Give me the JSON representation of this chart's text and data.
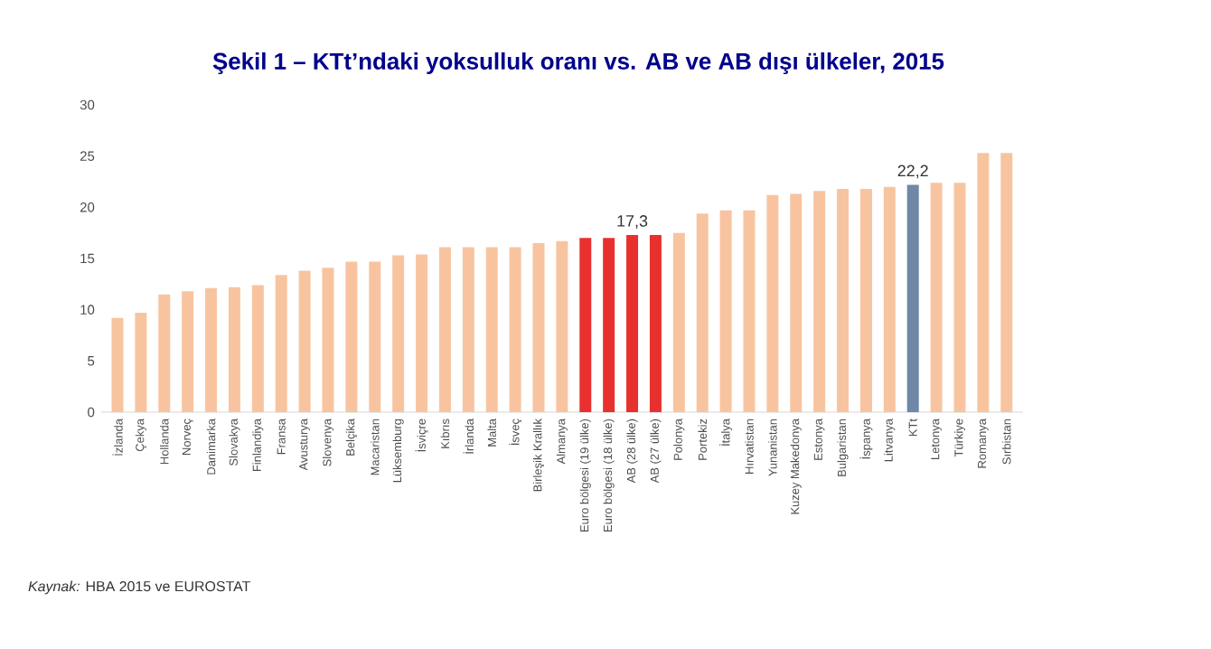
{
  "chart_data": {
    "type": "bar",
    "title": "Şekil 1 – KTt’ndaki yoksulluk oranı vs. AB ve AB dışı ülkeler, 2015",
    "categories": [
      "İzlanda",
      "Çekya",
      "Hollanda",
      "Norveç",
      "Danimarka",
      "Slovakya",
      "Finlandiya",
      "Fransa",
      "Avusturya",
      "Slovenya",
      "Belçika",
      "Macaristan",
      "Lüksemburg",
      "İsviçre",
      "Kıbrıs",
      "İrlanda",
      "Malta",
      "İsveç",
      "Birleşik Krallık",
      "Almanya",
      "Euro bölgesi (19 ülke)",
      "Euro bölgesi (18 ülke)",
      "AB (28 ülke)",
      "AB (27 ülke)",
      "Polonya",
      "Portekiz",
      "İtalya",
      "Hırvatistan",
      "Yunanistan",
      "Kuzey Makedonya",
      "Estonya",
      "Bulgaristan",
      "İspanya",
      "Litvanya",
      "KTt",
      "Letonya",
      "Türkiye",
      "Romanya",
      "Sırbistan"
    ],
    "values": [
      9.2,
      9.7,
      11.5,
      11.8,
      12.1,
      12.2,
      12.4,
      13.4,
      13.8,
      14.1,
      14.7,
      14.7,
      15.3,
      15.4,
      16.1,
      16.1,
      16.1,
      16.1,
      16.5,
      16.7,
      17.0,
      17.0,
      17.3,
      17.3,
      17.5,
      19.4,
      19.7,
      19.7,
      21.2,
      21.3,
      21.6,
      21.8,
      21.8,
      22.0,
      22.2,
      22.4,
      22.4,
      25.3,
      25.3
    ],
    "value_labels": [
      null,
      null,
      null,
      null,
      null,
      null,
      null,
      null,
      null,
      null,
      null,
      null,
      null,
      null,
      null,
      null,
      null,
      null,
      null,
      null,
      null,
      null,
      "17,3",
      null,
      null,
      null,
      null,
      null,
      null,
      null,
      null,
      null,
      null,
      null,
      "22,2",
      null,
      null,
      null,
      null
    ],
    "colors": [
      "#f8c4a0",
      "#f8c4a0",
      "#f8c4a0",
      "#f8c4a0",
      "#f8c4a0",
      "#f8c4a0",
      "#f8c4a0",
      "#f8c4a0",
      "#f8c4a0",
      "#f8c4a0",
      "#f8c4a0",
      "#f8c4a0",
      "#f8c4a0",
      "#f8c4a0",
      "#f8c4a0",
      "#f8c4a0",
      "#f8c4a0",
      "#f8c4a0",
      "#f8c4a0",
      "#f8c4a0",
      "#e8312f",
      "#e8312f",
      "#e8312f",
      "#e8312f",
      "#f8c4a0",
      "#f8c4a0",
      "#f8c4a0",
      "#f8c4a0",
      "#f8c4a0",
      "#f8c4a0",
      "#f8c4a0",
      "#f8c4a0",
      "#f8c4a0",
      "#f8c4a0",
      "#6f88a8",
      "#f8c4a0",
      "#f8c4a0",
      "#f8c4a0",
      "#f8c4a0"
    ],
    "ylim": [
      0,
      30
    ],
    "yticks": [
      0,
      5,
      10,
      15,
      20,
      25,
      30
    ],
    "grid": false,
    "annotations": [
      "*Kaynak:* HBA 2015 ve EUROSTAT"
    ]
  }
}
